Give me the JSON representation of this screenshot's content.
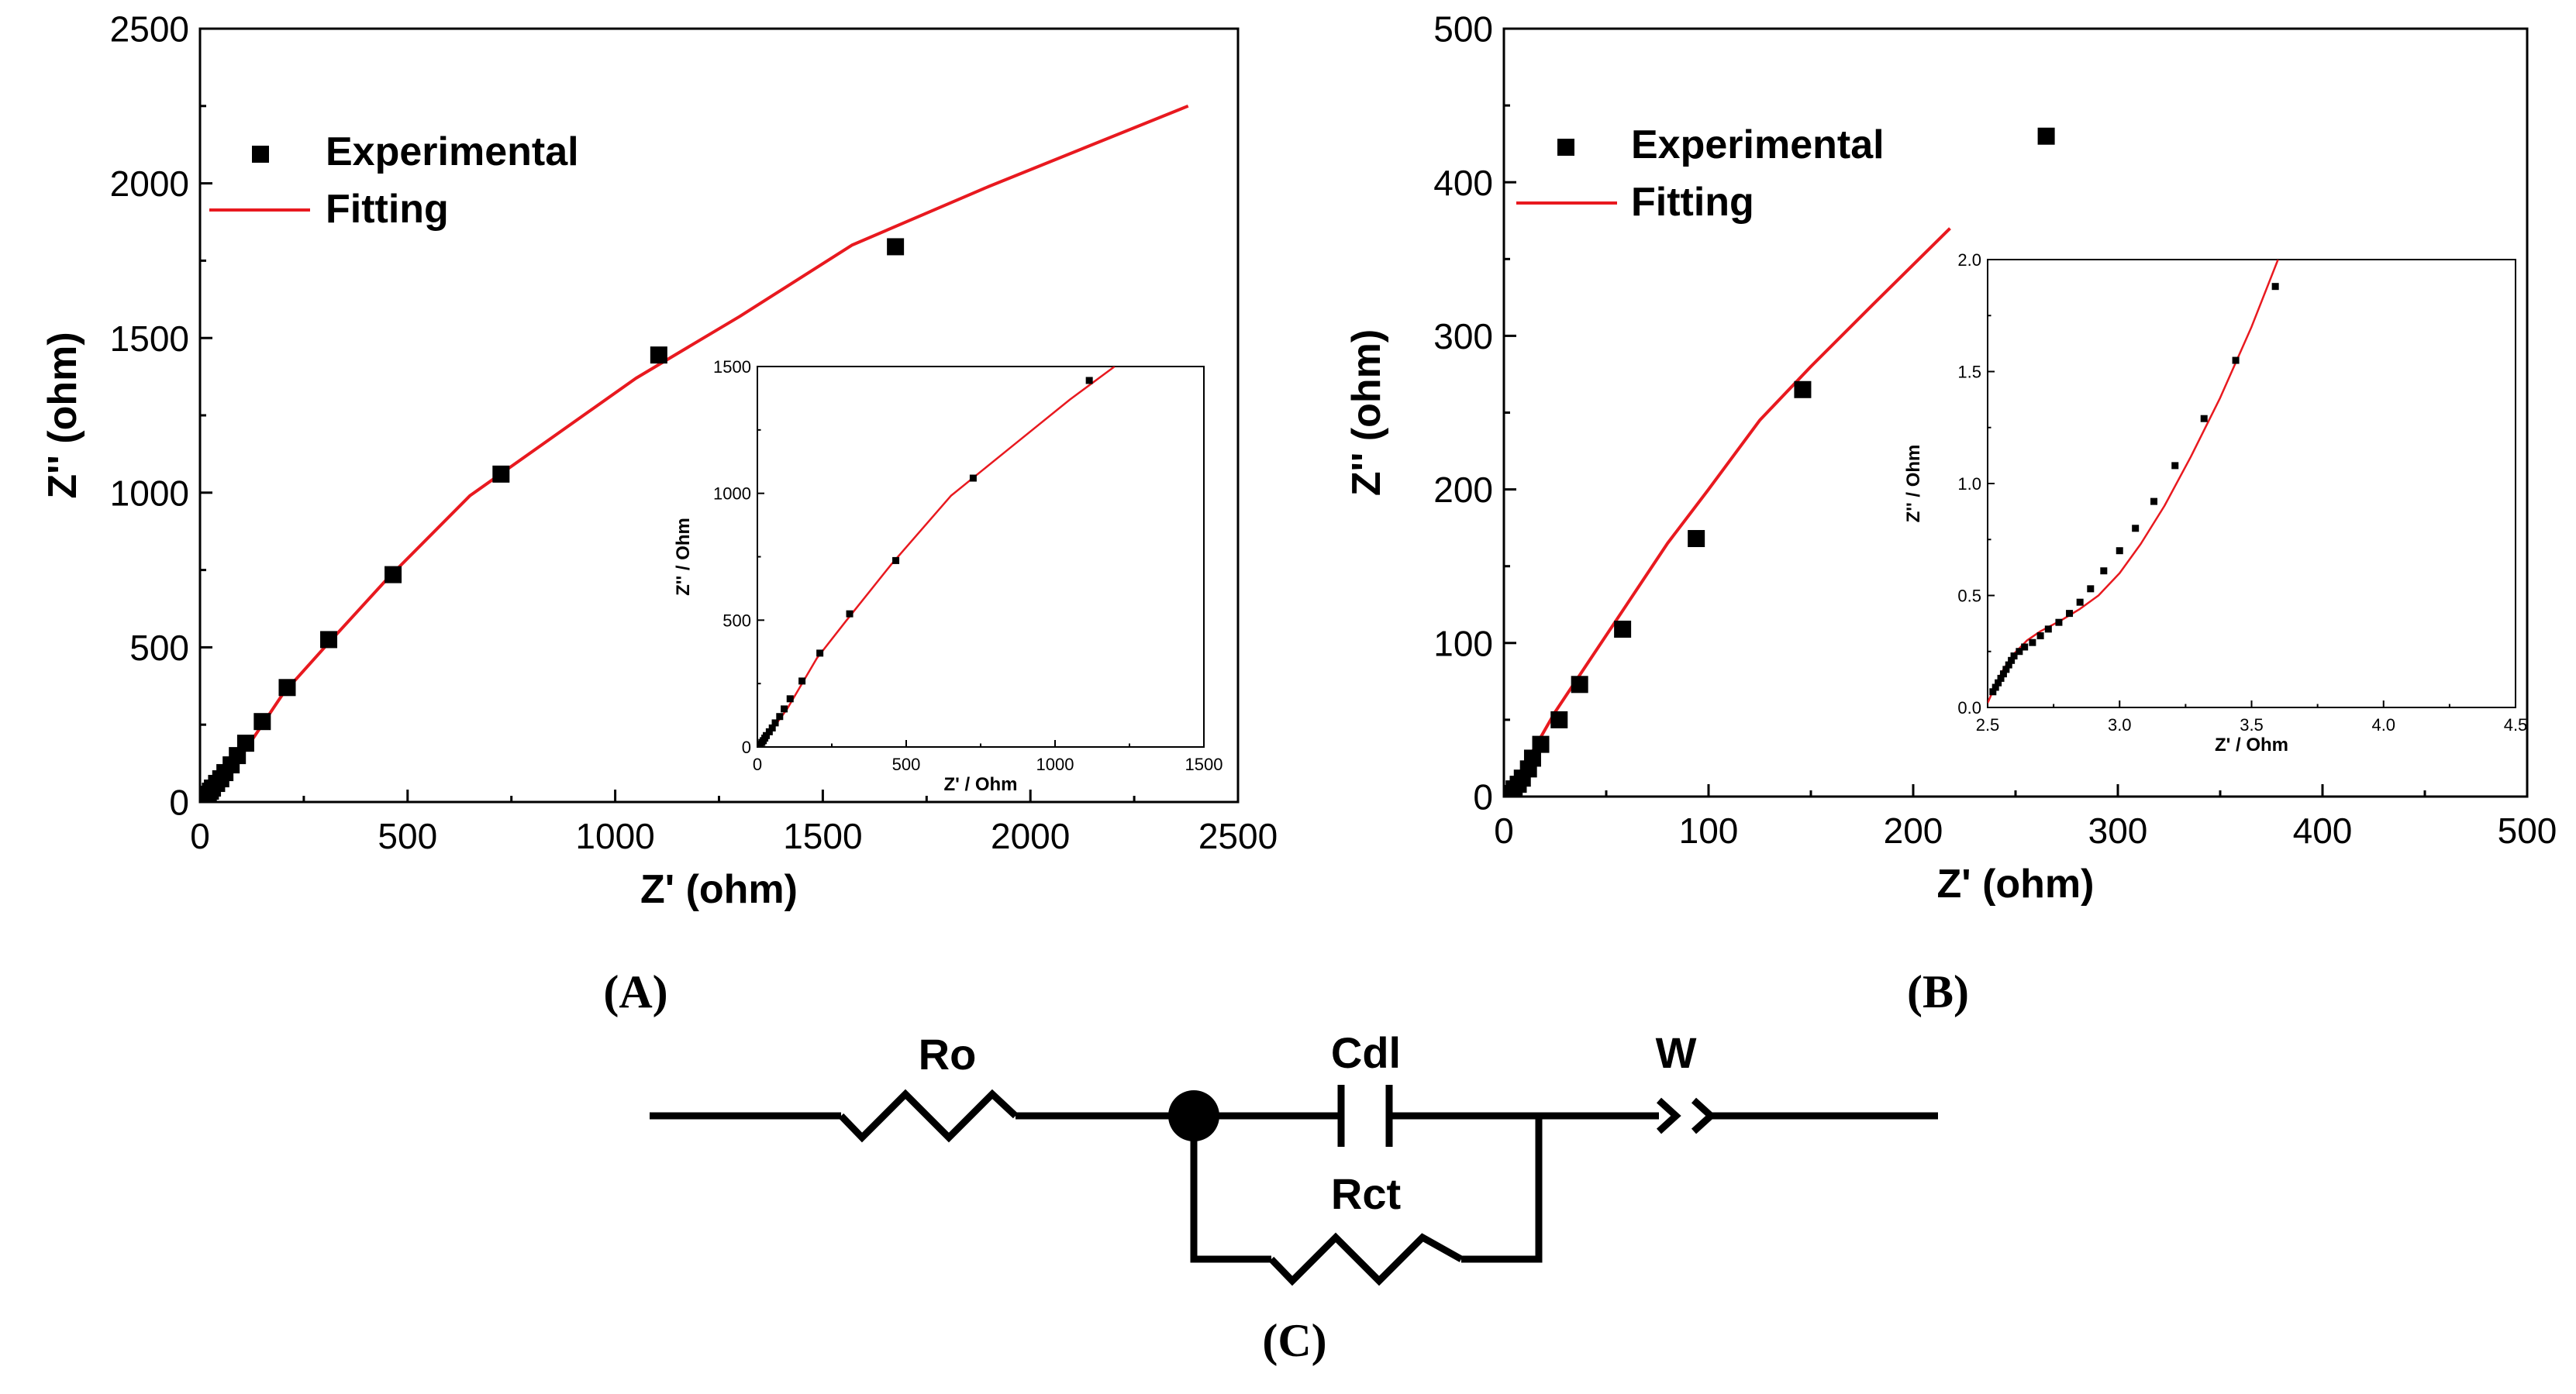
{
  "chart_data": [
    {
      "id": "A",
      "type": "scatter",
      "panel_label": "(A)",
      "xlabel": "Z' (ohm)",
      "ylabel": "Z'' (ohm)",
      "xlim": [
        0,
        2500
      ],
      "ylim": [
        0,
        2500
      ],
      "xticks": [
        0,
        500,
        1000,
        1500,
        2000,
        2500
      ],
      "yticks": [
        0,
        500,
        1000,
        1500,
        2000,
        2500
      ],
      "legend": {
        "placement": "top-left",
        "entries": [
          "Experimental",
          "Fitting"
        ]
      },
      "series": [
        {
          "name": "Experimental",
          "kind": "markers",
          "x": [
            5,
            10,
            15,
            20,
            25,
            30,
            40,
            50,
            60,
            75,
            90,
            110,
            150,
            210,
            310,
            465,
            725,
            1105,
            1675
          ],
          "y": [
            5,
            10,
            18,
            25,
            35,
            45,
            60,
            75,
            95,
            120,
            150,
            190,
            260,
            370,
            525,
            735,
            1060,
            1445,
            1795
          ]
        },
        {
          "name": "Fitting",
          "kind": "line",
          "color": "#e8191f",
          "x": [
            0,
            50,
            100,
            200,
            300,
            450,
            650,
            850,
            1050,
            1300,
            1570,
            1900,
            2380
          ],
          "y": [
            0,
            70,
            150,
            350,
            500,
            720,
            990,
            1180,
            1370,
            1570,
            1800,
            1990,
            2250
          ]
        }
      ],
      "inset": {
        "xlabel": "Z' / Ohm",
        "ylabel": "Z'' / Ohm",
        "xlim": [
          0,
          1500
        ],
        "ylim": [
          0,
          1500
        ],
        "xticks": [
          0,
          500,
          1000,
          1500
        ],
        "yticks": [
          0,
          500,
          1000,
          1500
        ],
        "series": [
          {
            "name": "Experimental",
            "kind": "markers",
            "x": [
              5,
              10,
              15,
              20,
              25,
              30,
              40,
              50,
              60,
              75,
              90,
              110,
              150,
              210,
              310,
              465,
              725,
              1115
            ],
            "y": [
              5,
              10,
              18,
              25,
              35,
              45,
              60,
              75,
              95,
              120,
              150,
              190,
              260,
              370,
              525,
              735,
              1060,
              1445
            ]
          },
          {
            "name": "Fitting",
            "kind": "line",
            "color": "#e8191f",
            "x": [
              0,
              50,
              100,
              200,
              300,
              450,
              650,
              850,
              1050,
              1200
            ],
            "y": [
              0,
              70,
              150,
              350,
              500,
              720,
              990,
              1180,
              1370,
              1500
            ]
          }
        ]
      }
    },
    {
      "id": "B",
      "type": "scatter",
      "panel_label": "(B)",
      "xlabel": "Z' (ohm)",
      "ylabel": "Z'' (ohm)",
      "xlim": [
        0,
        500
      ],
      "ylim": [
        0,
        500
      ],
      "xticks": [
        0,
        100,
        200,
        300,
        400,
        500
      ],
      "yticks": [
        0,
        100,
        200,
        300,
        400,
        500
      ],
      "legend": {
        "placement": "top-left",
        "entries": [
          "Experimental",
          "Fitting"
        ]
      },
      "series": [
        {
          "name": "Experimental",
          "kind": "markers",
          "x": [
            3,
            5,
            7,
            9,
            12,
            14,
            18,
            27,
            37,
            58,
            94,
            146,
            265
          ],
          "y": [
            2,
            5,
            8,
            12,
            18,
            25,
            34,
            50,
            73,
            109,
            168,
            265,
            430
          ]
        },
        {
          "name": "Fitting",
          "kind": "line",
          "color": "#e8191f",
          "x": [
            0,
            10,
            25,
            40,
            60,
            80,
            100,
            125,
            150,
            180,
            218
          ],
          "y": [
            0,
            20,
            55,
            85,
            125,
            165,
            200,
            245,
            280,
            320,
            370
          ]
        }
      ],
      "inset": {
        "xlabel": "Z' / Ohm",
        "ylabel": "Z'' / Ohm",
        "xlim": [
          2.5,
          4.5
        ],
        "ylim": [
          0,
          2.0
        ],
        "xticks": [
          "2.5",
          "3.0",
          "3.5",
          "4.0",
          "4.5"
        ],
        "yticks": [
          "0.0",
          "0.5",
          "1.0",
          "1.5",
          "2.0"
        ],
        "series": [
          {
            "name": "Experimental",
            "kind": "markers",
            "x": [
              2.52,
              2.53,
              2.54,
              2.55,
              2.56,
              2.57,
              2.58,
              2.59,
              2.6,
              2.62,
              2.64,
              2.67,
              2.7,
              2.73,
              2.77,
              2.81,
              2.85,
              2.89,
              2.94,
              3.0,
              3.06,
              3.13,
              3.21,
              3.32,
              3.44,
              3.59
            ],
            "y": [
              0.07,
              0.09,
              0.11,
              0.13,
              0.15,
              0.17,
              0.19,
              0.21,
              0.23,
              0.25,
              0.27,
              0.29,
              0.32,
              0.35,
              0.38,
              0.42,
              0.47,
              0.53,
              0.61,
              0.7,
              0.8,
              0.92,
              1.08,
              1.29,
              1.55,
              1.88
            ]
          },
          {
            "name": "Fitting",
            "kind": "line",
            "color": "#e8191f",
            "x": [
              2.5,
              2.53,
              2.56,
              2.6,
              2.65,
              2.7,
              2.78,
              2.85,
              2.92,
              3.0,
              3.08,
              3.17,
              3.27,
              3.38,
              3.5,
              3.6
            ],
            "y": [
              0.02,
              0.1,
              0.17,
              0.24,
              0.3,
              0.34,
              0.39,
              0.44,
              0.5,
              0.6,
              0.73,
              0.9,
              1.12,
              1.38,
              1.7,
              2.0
            ]
          }
        ]
      }
    }
  ],
  "circuit": {
    "panel_label": "(C)",
    "components": {
      "r0": "Ro",
      "cdl": "Cdl",
      "rct": "Rct",
      "w": "W"
    }
  }
}
